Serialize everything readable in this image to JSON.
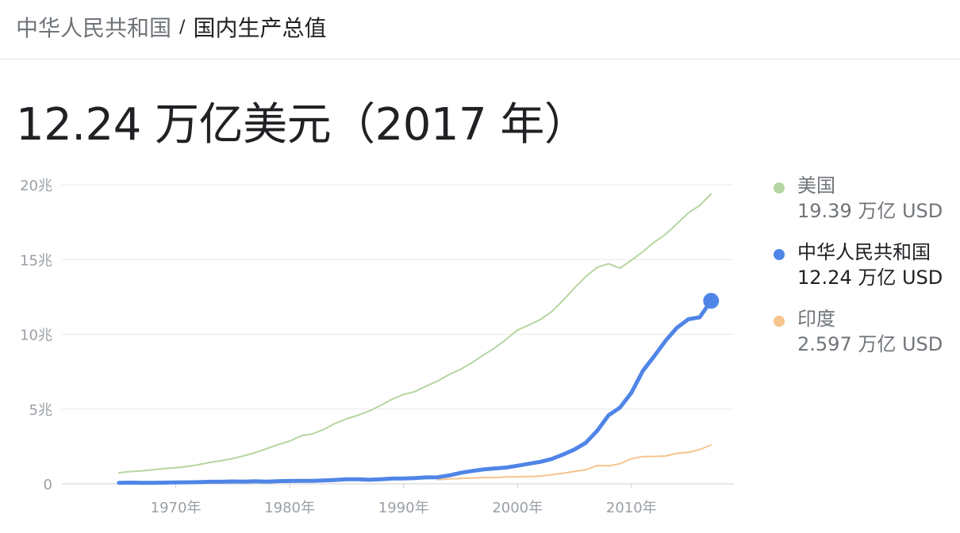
{
  "breadcrumb": {
    "parent": "中华人民共和国",
    "separator": "/",
    "current": "国内生产总值"
  },
  "headline": "12.24 万亿美元（2017 年）",
  "legend": [
    {
      "name": "美国",
      "value": "19.39 万亿 USD",
      "color": "#b5d6a0",
      "active": false
    },
    {
      "name": "中华人民共和国",
      "value": "12.24 万亿 USD",
      "color": "#4f85e6",
      "active": true
    },
    {
      "name": "印度",
      "value": "2.597 万亿 USD",
      "color": "#f6c48f",
      "active": false
    }
  ],
  "chart_data": {
    "type": "line",
    "xlim": [
      1960,
      2019
    ],
    "ylim": [
      0,
      20
    ],
    "y_ticks": [
      {
        "value": 0,
        "label": "0"
      },
      {
        "value": 5,
        "label": "5兆"
      },
      {
        "value": 10,
        "label": "10兆"
      },
      {
        "value": 15,
        "label": "15兆"
      },
      {
        "value": 20,
        "label": "20兆"
      }
    ],
    "x_ticks": [
      {
        "value": 1970,
        "label": "1970年"
      },
      {
        "value": 1980,
        "label": "1980年"
      },
      {
        "value": 1990,
        "label": "1990年"
      },
      {
        "value": 2000,
        "label": "2000年"
      },
      {
        "value": 2010,
        "label": "2010年"
      }
    ],
    "grid": true,
    "series": [
      {
        "name": "美国",
        "color": "#b5d6a0",
        "points": [
          [
            1965,
            0.74
          ],
          [
            1966,
            0.82
          ],
          [
            1967,
            0.86
          ],
          [
            1968,
            0.94
          ],
          [
            1969,
            1.02
          ],
          [
            1970,
            1.07
          ],
          [
            1971,
            1.16
          ],
          [
            1972,
            1.28
          ],
          [
            1973,
            1.43
          ],
          [
            1974,
            1.55
          ],
          [
            1975,
            1.69
          ],
          [
            1976,
            1.88
          ],
          [
            1977,
            2.09
          ],
          [
            1978,
            2.36
          ],
          [
            1979,
            2.63
          ],
          [
            1980,
            2.86
          ],
          [
            1981,
            3.21
          ],
          [
            1982,
            3.34
          ],
          [
            1983,
            3.64
          ],
          [
            1984,
            4.04
          ],
          [
            1985,
            4.35
          ],
          [
            1986,
            4.59
          ],
          [
            1987,
            4.87
          ],
          [
            1988,
            5.25
          ],
          [
            1989,
            5.66
          ],
          [
            1990,
            5.98
          ],
          [
            1991,
            6.17
          ],
          [
            1992,
            6.54
          ],
          [
            1993,
            6.88
          ],
          [
            1994,
            7.31
          ],
          [
            1995,
            7.66
          ],
          [
            1996,
            8.1
          ],
          [
            1997,
            8.61
          ],
          [
            1998,
            9.09
          ],
          [
            1999,
            9.66
          ],
          [
            2000,
            10.28
          ],
          [
            2001,
            10.62
          ],
          [
            2002,
            10.98
          ],
          [
            2003,
            11.51
          ],
          [
            2004,
            12.27
          ],
          [
            2005,
            13.09
          ],
          [
            2006,
            13.86
          ],
          [
            2007,
            14.48
          ],
          [
            2008,
            14.72
          ],
          [
            2009,
            14.42
          ],
          [
            2010,
            14.96
          ],
          [
            2011,
            15.52
          ],
          [
            2012,
            16.16
          ],
          [
            2013,
            16.69
          ],
          [
            2014,
            17.39
          ],
          [
            2015,
            18.12
          ],
          [
            2016,
            18.62
          ],
          [
            2017,
            19.39
          ]
        ]
      },
      {
        "name": "中华人民共和国",
        "color": "#4f85e6",
        "points": [
          [
            1965,
            0.07
          ],
          [
            1966,
            0.08
          ],
          [
            1967,
            0.07
          ],
          [
            1968,
            0.07
          ],
          [
            1969,
            0.08
          ],
          [
            1970,
            0.09
          ],
          [
            1971,
            0.1
          ],
          [
            1972,
            0.11
          ],
          [
            1973,
            0.14
          ],
          [
            1974,
            0.14
          ],
          [
            1975,
            0.16
          ],
          [
            1976,
            0.15
          ],
          [
            1977,
            0.17
          ],
          [
            1978,
            0.15
          ],
          [
            1979,
            0.18
          ],
          [
            1980,
            0.19
          ],
          [
            1981,
            0.2
          ],
          [
            1982,
            0.2
          ],
          [
            1983,
            0.23
          ],
          [
            1984,
            0.26
          ],
          [
            1985,
            0.31
          ],
          [
            1986,
            0.3
          ],
          [
            1987,
            0.27
          ],
          [
            1988,
            0.31
          ],
          [
            1989,
            0.35
          ],
          [
            1990,
            0.36
          ],
          [
            1991,
            0.38
          ],
          [
            1992,
            0.43
          ],
          [
            1993,
            0.44
          ],
          [
            1994,
            0.56
          ],
          [
            1995,
            0.73
          ],
          [
            1996,
            0.86
          ],
          [
            1997,
            0.96
          ],
          [
            1998,
            1.03
          ],
          [
            1999,
            1.09
          ],
          [
            2000,
            1.21
          ],
          [
            2001,
            1.34
          ],
          [
            2002,
            1.47
          ],
          [
            2003,
            1.66
          ],
          [
            2004,
            1.96
          ],
          [
            2005,
            2.29
          ],
          [
            2006,
            2.75
          ],
          [
            2007,
            3.55
          ],
          [
            2008,
            4.59
          ],
          [
            2009,
            5.1
          ],
          [
            2010,
            6.09
          ],
          [
            2011,
            7.55
          ],
          [
            2012,
            8.53
          ],
          [
            2013,
            9.57
          ],
          [
            2014,
            10.44
          ],
          [
            2015,
            11.01
          ],
          [
            2016,
            11.14
          ],
          [
            2017,
            12.24
          ]
        ]
      },
      {
        "name": "印度",
        "color": "#f6c48f",
        "points": [
          [
            1993,
            0.28
          ],
          [
            1994,
            0.33
          ],
          [
            1995,
            0.36
          ],
          [
            1996,
            0.39
          ],
          [
            1997,
            0.42
          ],
          [
            1998,
            0.42
          ],
          [
            1999,
            0.46
          ],
          [
            2000,
            0.47
          ],
          [
            2001,
            0.49
          ],
          [
            2002,
            0.51
          ],
          [
            2003,
            0.61
          ],
          [
            2004,
            0.71
          ],
          [
            2005,
            0.83
          ],
          [
            2006,
            0.94
          ],
          [
            2007,
            1.22
          ],
          [
            2008,
            1.2
          ],
          [
            2009,
            1.34
          ],
          [
            2010,
            1.68
          ],
          [
            2011,
            1.82
          ],
          [
            2012,
            1.83
          ],
          [
            2013,
            1.86
          ],
          [
            2014,
            2.04
          ],
          [
            2015,
            2.1
          ],
          [
            2016,
            2.29
          ],
          [
            2017,
            2.6
          ]
        ]
      }
    ]
  }
}
